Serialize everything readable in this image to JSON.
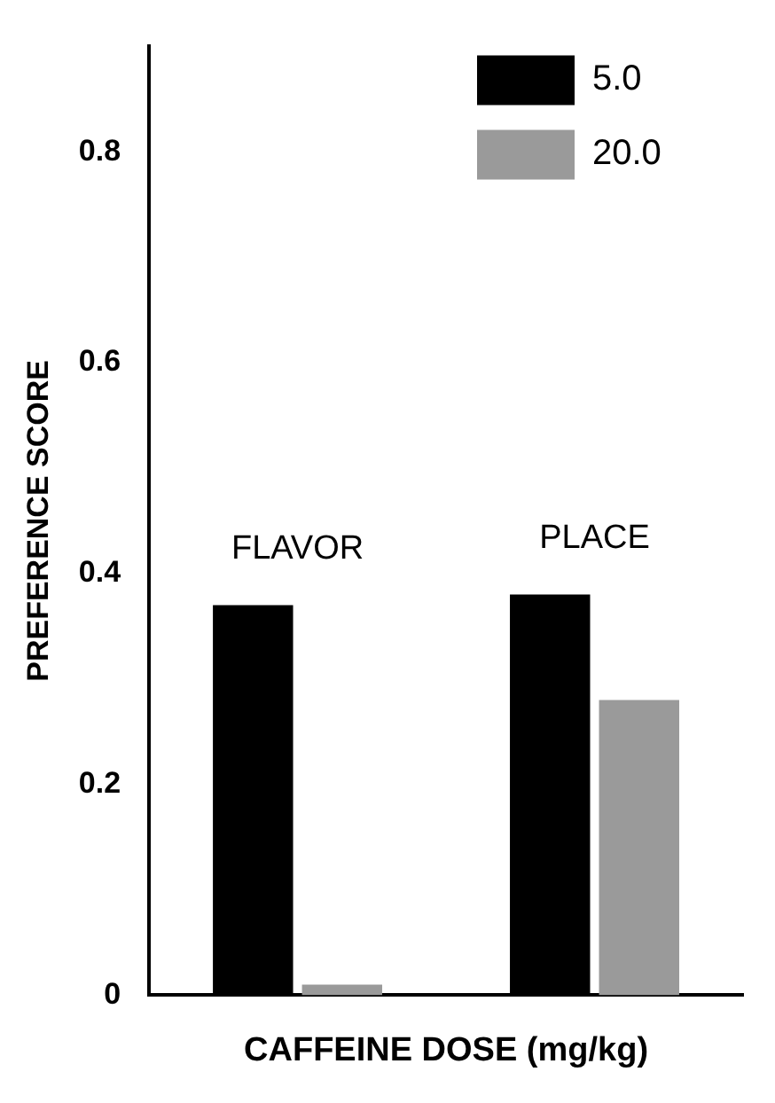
{
  "chart_data": {
    "type": "bar",
    "xlabel": "CAFFEINE DOSE (mg/kg)",
    "ylabel": "PREFERENCE SCORE",
    "categories": [
      "FLAVOR",
      "PLACE"
    ],
    "series": [
      {
        "name": "5.0",
        "color": "#000000",
        "values": [
          0.37,
          0.38
        ]
      },
      {
        "name": "20.0",
        "color": "#9a9a9a",
        "values": [
          0.01,
          0.28
        ]
      }
    ],
    "ylim": [
      0,
      0.9
    ],
    "yticks": [
      0,
      0.2,
      0.4,
      0.6,
      0.8
    ],
    "grid": false,
    "legend": "top right",
    "tick_labels": "y"
  }
}
